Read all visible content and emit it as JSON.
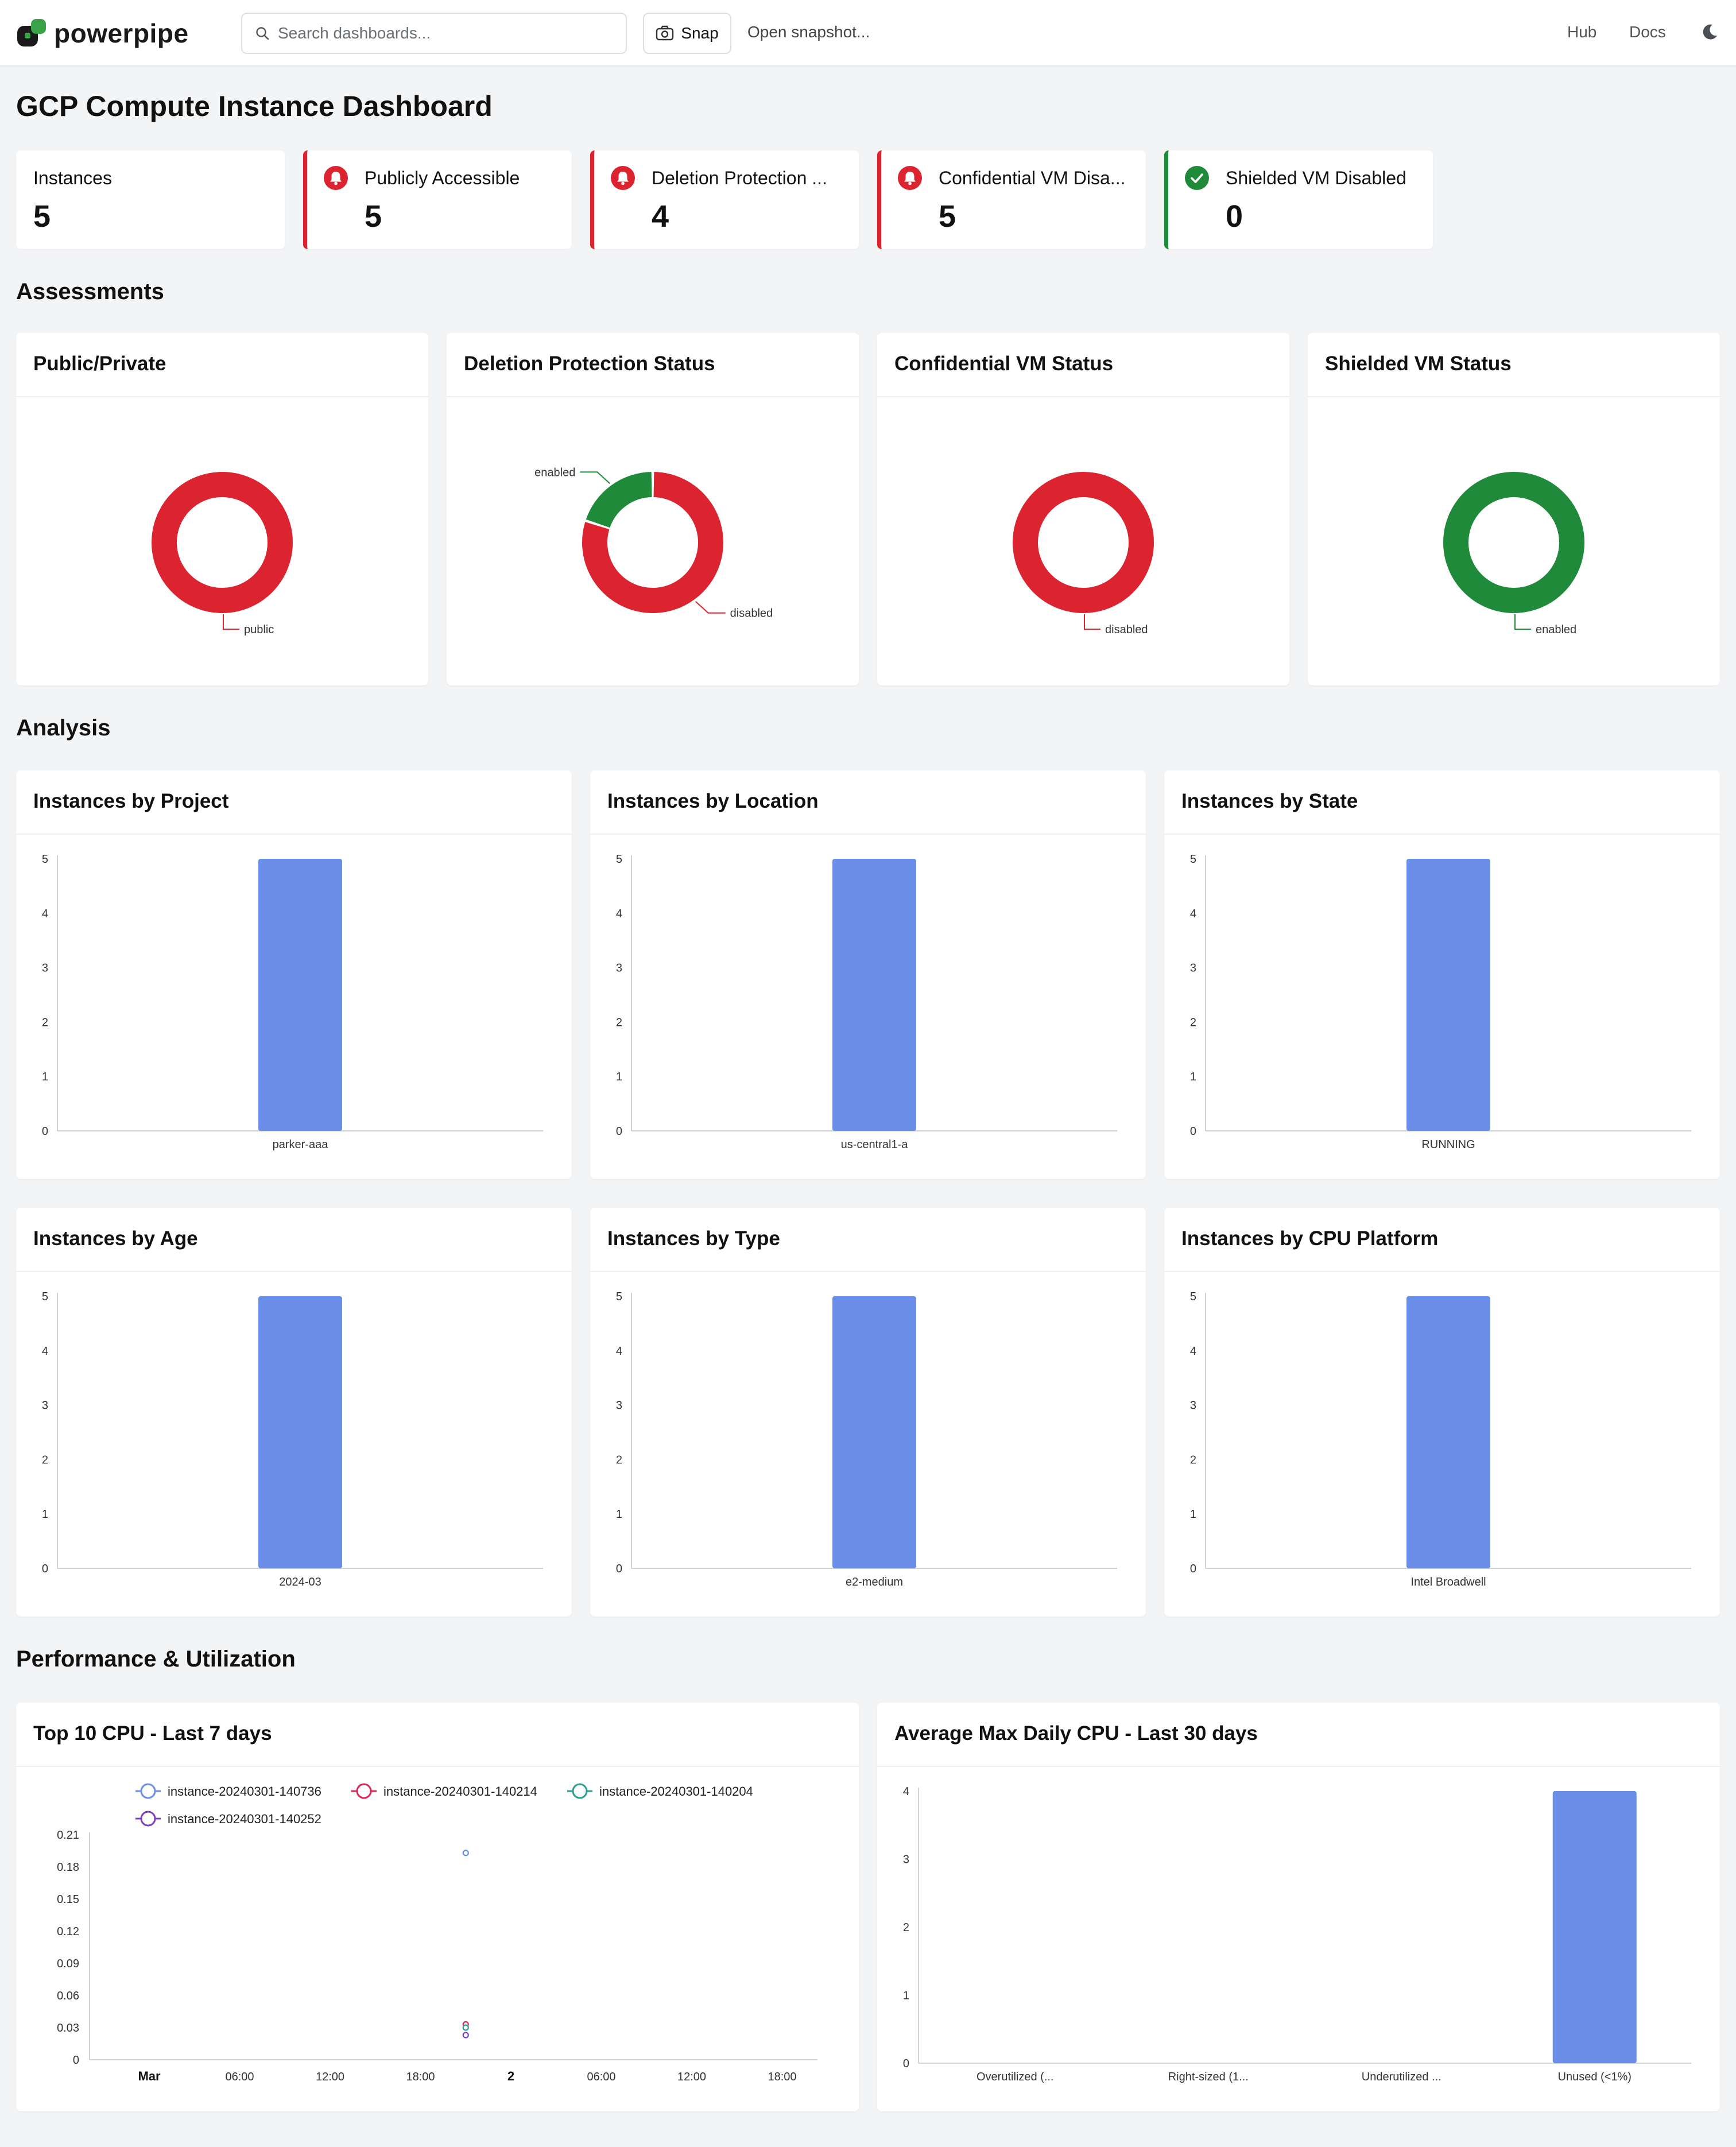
{
  "header": {
    "brand": "powerpipe",
    "search_placeholder": "Search dashboards...",
    "snap_label": "Snap",
    "open_snapshot_label": "Open snapshot...",
    "nav": [
      "Hub",
      "Docs"
    ],
    "icons": [
      "powerpipe-logo-icon",
      "search-icon",
      "camera-icon",
      "moon-icon"
    ]
  },
  "page": {
    "title": "GCP Compute Instance Dashboard"
  },
  "cards": [
    {
      "label": "Instances",
      "value": "5",
      "status": "info"
    },
    {
      "label": "Publicly Accessible",
      "value": "5",
      "status": "alert",
      "icon": "bell-icon"
    },
    {
      "label": "Deletion Protection ...",
      "value": "4",
      "status": "alert",
      "icon": "bell-icon"
    },
    {
      "label": "Confidential VM Disa...",
      "value": "5",
      "status": "alert",
      "icon": "bell-icon"
    },
    {
      "label": "Shielded VM Disabled",
      "value": "0",
      "status": "ok",
      "icon": "check-icon"
    }
  ],
  "sections": {
    "assessments": "Assessments",
    "analysis": "Analysis",
    "performance": "Performance & Utilization"
  },
  "colors": {
    "alert": "#dc2430",
    "ok": "#1e8a3a",
    "bar": "#6a8de8",
    "series": [
      "#6a8de8",
      "#dc2454",
      "#2a9d8f",
      "#7e3fbf"
    ]
  },
  "donuts": [
    {
      "title": "Public/Private",
      "slices": [
        {
          "label": "public",
          "value": 5,
          "color": "#dc2430"
        }
      ]
    },
    {
      "title": "Deletion Protection Status",
      "slices": [
        {
          "label": "disabled",
          "value": 4,
          "color": "#dc2430"
        },
        {
          "label": "enabled",
          "value": 1,
          "color": "#1e8a3a"
        }
      ]
    },
    {
      "title": "Confidential VM Status",
      "slices": [
        {
          "label": "disabled",
          "value": 5,
          "color": "#dc2430"
        }
      ]
    },
    {
      "title": "Shielded VM Status",
      "slices": [
        {
          "label": "enabled",
          "value": 5,
          "color": "#1e8a3a"
        }
      ]
    }
  ],
  "chart_data": [
    {
      "type": "bar",
      "title": "Instances by Project",
      "categories": [
        "parker-aaa"
      ],
      "values": [
        5
      ],
      "ylim": [
        0,
        5
      ],
      "yticks": [
        "0",
        "1",
        "2",
        "3",
        "4",
        "5"
      ]
    },
    {
      "type": "bar",
      "title": "Instances by Location",
      "categories": [
        "us-central1-a"
      ],
      "values": [
        5
      ],
      "ylim": [
        0,
        5
      ],
      "yticks": [
        "0",
        "1",
        "2",
        "3",
        "4",
        "5"
      ]
    },
    {
      "type": "bar",
      "title": "Instances by State",
      "categories": [
        "RUNNING"
      ],
      "values": [
        5
      ],
      "ylim": [
        0,
        5
      ],
      "yticks": [
        "0",
        "1",
        "2",
        "3",
        "4",
        "5"
      ]
    },
    {
      "type": "bar",
      "title": "Instances by Age",
      "categories": [
        "2024-03"
      ],
      "values": [
        5
      ],
      "ylim": [
        0,
        5
      ],
      "yticks": [
        "0",
        "1",
        "2",
        "3",
        "4",
        "5"
      ]
    },
    {
      "type": "bar",
      "title": "Instances by Type",
      "categories": [
        "e2-medium"
      ],
      "values": [
        5
      ],
      "ylim": [
        0,
        5
      ],
      "yticks": [
        "0",
        "1",
        "2",
        "3",
        "4",
        "5"
      ]
    },
    {
      "type": "bar",
      "title": "Instances by CPU Platform",
      "categories": [
        "Intel Broadwell"
      ],
      "values": [
        5
      ],
      "ylim": [
        0,
        5
      ],
      "yticks": [
        "0",
        "1",
        "2",
        "3",
        "4",
        "5"
      ]
    },
    {
      "type": "scatter",
      "title": "Top 10 CPU - Last 7 days",
      "x_ticks": [
        "Mar",
        "06:00",
        "12:00",
        "18:00",
        "2",
        "06:00",
        "12:00",
        "18:00"
      ],
      "ylim": [
        0,
        0.21
      ],
      "yticks": [
        "0",
        "0.03",
        "0.06",
        "0.09",
        "0.12",
        "0.15",
        "0.18",
        "0.21"
      ],
      "series": [
        {
          "name": "instance-20240301-140736",
          "points": [
            {
              "x": "2024-03-01T21:00",
              "y": 0.193
            }
          ]
        },
        {
          "name": "instance-20240301-140214",
          "points": [
            {
              "x": "2024-03-01T21:00",
              "y": 0.033
            }
          ]
        },
        {
          "name": "instance-20240301-140204",
          "points": [
            {
              "x": "2024-03-01T21:00",
              "y": 0.03
            }
          ]
        },
        {
          "name": "instance-20240301-140252",
          "points": [
            {
              "x": "2024-03-01T21:00",
              "y": 0.023
            }
          ]
        }
      ]
    },
    {
      "type": "bar",
      "title": "Average Max Daily CPU - Last 30 days",
      "categories": [
        "Overutilized (...",
        "Right-sized (1...",
        "Underutilized ...",
        "Unused (<1%)"
      ],
      "values": [
        0,
        0,
        0,
        4
      ],
      "ylim": [
        0,
        4
      ],
      "yticks": [
        "0",
        "1",
        "2",
        "3",
        "4"
      ]
    }
  ]
}
